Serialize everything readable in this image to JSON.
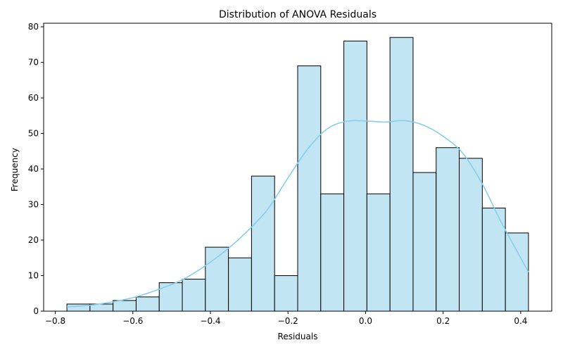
{
  "chart_data": {
    "type": "bar",
    "title": "Distribution of ANOVA Residuals",
    "xlabel": "Residuals",
    "ylabel": "Frequency",
    "xlim": [
      -0.83,
      0.48
    ],
    "ylim": [
      0,
      81
    ],
    "grid": false,
    "x_ticks": [
      -0.8,
      -0.6,
      -0.4,
      -0.2,
      0.0,
      0.2,
      0.4
    ],
    "x_tick_labels": [
      "−0.8",
      "−0.6",
      "−0.4",
      "−0.2",
      "0.0",
      "0.2",
      "0.4"
    ],
    "y_ticks": [
      0,
      10,
      20,
      30,
      40,
      50,
      60,
      70,
      80
    ],
    "y_tick_labels": [
      "0",
      "10",
      "20",
      "30",
      "40",
      "50",
      "60",
      "70",
      "80"
    ],
    "bin_edges": [
      -0.77,
      -0.7105,
      -0.651,
      -0.5915,
      -0.532,
      -0.4725,
      -0.413,
      -0.3535,
      -0.294,
      -0.2345,
      -0.175,
      -0.1155,
      -0.056,
      0.0035,
      0.063,
      0.1225,
      0.182,
      0.2415,
      0.301,
      0.3605,
      0.42
    ],
    "counts": [
      2,
      2,
      3,
      4,
      8,
      9,
      18,
      15,
      38,
      10,
      69,
      33,
      76,
      33,
      77,
      39,
      46,
      43,
      29,
      22
    ],
    "kde": {
      "x": [
        -0.77,
        -0.7,
        -0.6,
        -0.5,
        -0.45,
        -0.4,
        -0.35,
        -0.3,
        -0.25,
        -0.2,
        -0.15,
        -0.1,
        -0.05,
        0.0,
        0.05,
        0.1,
        0.15,
        0.2,
        0.25,
        0.3,
        0.35,
        0.42
      ],
      "y": [
        1.2,
        1.8,
        3.8,
        7.5,
        10.2,
        13.8,
        18.0,
        23.0,
        29.0,
        37.5,
        45.5,
        51.2,
        53.4,
        53.5,
        53.2,
        53.6,
        52.3,
        49.2,
        44.5,
        36.0,
        25.0,
        11.0
      ]
    },
    "colors": {
      "bar_fill": "#c2e5f3",
      "bar_edge": "#000000",
      "kde_line": "#87ceeb"
    }
  }
}
